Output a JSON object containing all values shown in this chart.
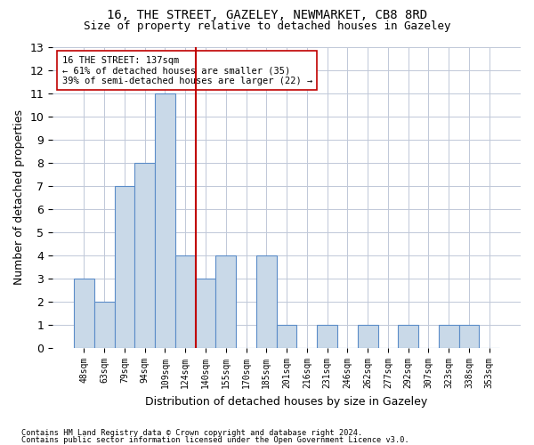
{
  "title1": "16, THE STREET, GAZELEY, NEWMARKET, CB8 8RD",
  "title2": "Size of property relative to detached houses in Gazeley",
  "xlabel": "Distribution of detached houses by size in Gazeley",
  "ylabel": "Number of detached properties",
  "categories": [
    "48sqm",
    "63sqm",
    "79sqm",
    "94sqm",
    "109sqm",
    "124sqm",
    "140sqm",
    "155sqm",
    "170sqm",
    "185sqm",
    "201sqm",
    "216sqm",
    "231sqm",
    "246sqm",
    "262sqm",
    "277sqm",
    "292sqm",
    "307sqm",
    "323sqm",
    "338sqm",
    "353sqm"
  ],
  "values": [
    3,
    2,
    7,
    8,
    11,
    4,
    3,
    4,
    0,
    4,
    1,
    0,
    1,
    0,
    1,
    0,
    1,
    0,
    1,
    1,
    0
  ],
  "bar_color": "#c9d9e8",
  "bar_edge_color": "#5b8cc8",
  "highlight_index": 5,
  "highlight_line_color": "#c00000",
  "ylim": [
    0,
    13
  ],
  "yticks": [
    0,
    1,
    2,
    3,
    4,
    5,
    6,
    7,
    8,
    9,
    10,
    11,
    12,
    13
  ],
  "annotation_title": "16 THE STREET: 137sqm",
  "annotation_line1": "← 61% of detached houses are smaller (35)",
  "annotation_line2": "39% of semi-detached houses are larger (22) →",
  "footer1": "Contains HM Land Registry data © Crown copyright and database right 2024.",
  "footer2": "Contains public sector information licensed under the Open Government Licence v3.0.",
  "bg_color": "#ffffff",
  "grid_color": "#c0c8d8"
}
